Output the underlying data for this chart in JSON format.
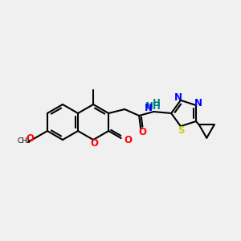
{
  "background_color": "#f0f0f0",
  "bond_color": "#000000",
  "atom_colors": {
    "O": "#ff0000",
    "N": "#0000ff",
    "S": "#cccc00",
    "H": "#008080",
    "C": "#000000"
  },
  "figsize": [
    3.0,
    3.0
  ],
  "dpi": 100
}
